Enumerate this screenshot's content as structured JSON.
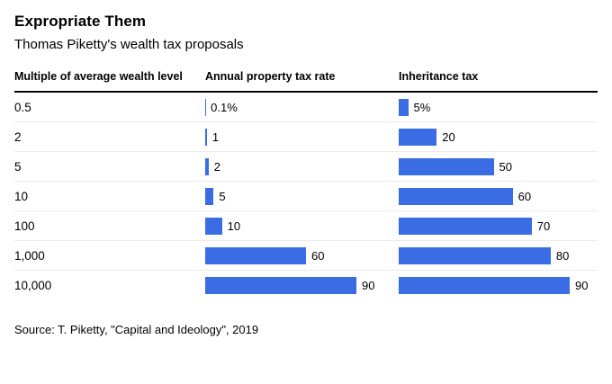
{
  "title": "Expropriate Them",
  "subtitle": "Thomas Piketty's wealth tax proposals",
  "columns": {
    "label": "Multiple of average wealth level",
    "property": "Annual property tax rate",
    "inheritance": "Inheritance tax"
  },
  "source": "Source: T. Piketty, \"Capital and Ideology\", 2019",
  "colors": {
    "bar": "#3a6de4"
  },
  "chart_data": {
    "type": "bar",
    "orientation": "horizontal",
    "title": "Expropriate Them",
    "subtitle": "Thomas Piketty's wealth tax proposals",
    "categories_label": "Multiple of average wealth level",
    "categories": [
      "0.5",
      "2",
      "5",
      "10",
      "100",
      "1,000",
      "10,000"
    ],
    "series": [
      {
        "name": "Annual property tax rate",
        "values": [
          0.1,
          1,
          2,
          5,
          10,
          60,
          90
        ],
        "labels": [
          "0.1%",
          "1",
          "2",
          "5",
          "10",
          "60",
          "90"
        ]
      },
      {
        "name": "Inheritance tax",
        "values": [
          5,
          20,
          50,
          60,
          70,
          80,
          90
        ],
        "labels": [
          "5%",
          "20",
          "50",
          "60",
          "70",
          "80",
          "90"
        ]
      }
    ],
    "xlim": [
      0,
      90
    ],
    "unit": "%",
    "grid": false,
    "legend": "none",
    "source": "Source: T. Piketty, \"Capital and Ideology\", 2019"
  }
}
